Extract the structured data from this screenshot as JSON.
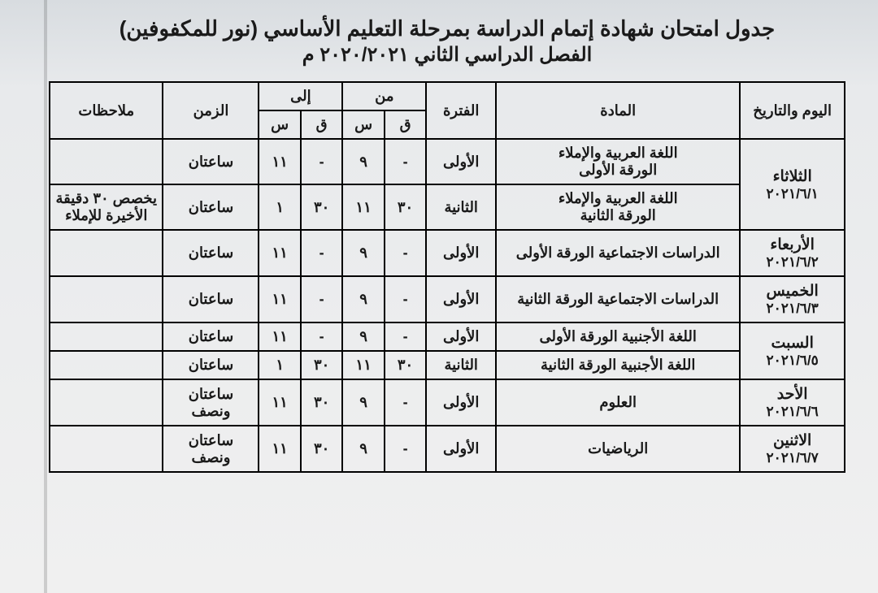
{
  "title": {
    "line1": "جدول امتحان شهادة إتمام الدراسة بمرحلة التعليم الأساسي (نور للمكفوفين)",
    "line2": "الفصل الدراسي الثاني ٢٠٢٠/٢٠٢١ م"
  },
  "headers": {
    "date": "اليوم والتاريخ",
    "subject": "المادة",
    "period": "الفترة",
    "from": "من",
    "to": "إلى",
    "q": "ق",
    "s": "س",
    "duration": "الزمن",
    "notes": "ملاحظات"
  },
  "rows": [
    {
      "day": "الثلاثاء",
      "date": "٢٠٢١/٦/١",
      "sessions": [
        {
          "subject": "اللغة العربية والإملاء\nالورقة الأولى",
          "period": "الأولى",
          "from_q": "-",
          "from_s": "٩",
          "to_q": "-",
          "to_s": "١١",
          "dur": "ساعتان",
          "notes": ""
        },
        {
          "subject": "اللغة العربية والإملاء\nالورقة الثانية",
          "period": "الثانية",
          "from_q": "٣٠",
          "from_s": "١١",
          "to_q": "٣٠",
          "to_s": "١",
          "dur": "ساعتان",
          "notes": "يخصص ٣٠ دقيقة الأخيرة للإملاء"
        }
      ]
    },
    {
      "day": "الأربعاء",
      "date": "٢٠٢١/٦/٢",
      "sessions": [
        {
          "subject": "الدراسات الاجتماعية الورقة الأولى",
          "period": "الأولى",
          "from_q": "-",
          "from_s": "٩",
          "to_q": "-",
          "to_s": "١١",
          "dur": "ساعتان",
          "notes": ""
        }
      ]
    },
    {
      "day": "الخميس",
      "date": "٢٠٢١/٦/٣",
      "sessions": [
        {
          "subject": "الدراسات الاجتماعية الورقة الثانية",
          "period": "الأولى",
          "from_q": "-",
          "from_s": "٩",
          "to_q": "-",
          "to_s": "١١",
          "dur": "ساعتان",
          "notes": ""
        }
      ]
    },
    {
      "day": "السبت",
      "date": "٢٠٢١/٦/٥",
      "sessions": [
        {
          "subject": "اللغة الأجنبية الورقة الأولى",
          "period": "الأولى",
          "from_q": "-",
          "from_s": "٩",
          "to_q": "-",
          "to_s": "١١",
          "dur": "ساعتان",
          "notes": ""
        },
        {
          "subject": "اللغة الأجنبية الورقة الثانية",
          "period": "الثانية",
          "from_q": "٣٠",
          "from_s": "١١",
          "to_q": "٣٠",
          "to_s": "١",
          "dur": "ساعتان",
          "notes": ""
        }
      ]
    },
    {
      "day": "الأحد",
      "date": "٢٠٢١/٦/٦",
      "sessions": [
        {
          "subject": "العلوم",
          "period": "الأولى",
          "from_q": "-",
          "from_s": "٩",
          "to_q": "٣٠",
          "to_s": "١١",
          "dur": "ساعتان ونصف",
          "notes": ""
        }
      ]
    },
    {
      "day": "الاثنين",
      "date": "٢٠٢١/٦/٧",
      "sessions": [
        {
          "subject": "الرياضيات",
          "period": "الأولى",
          "from_q": "-",
          "from_s": "٩",
          "to_q": "٣٠",
          "to_s": "١١",
          "dur": "ساعتان ونصف",
          "notes": ""
        }
      ]
    }
  ],
  "style": {
    "border_color": "#000000",
    "bg_color": "#eceef0",
    "text_color": "#111111"
  }
}
